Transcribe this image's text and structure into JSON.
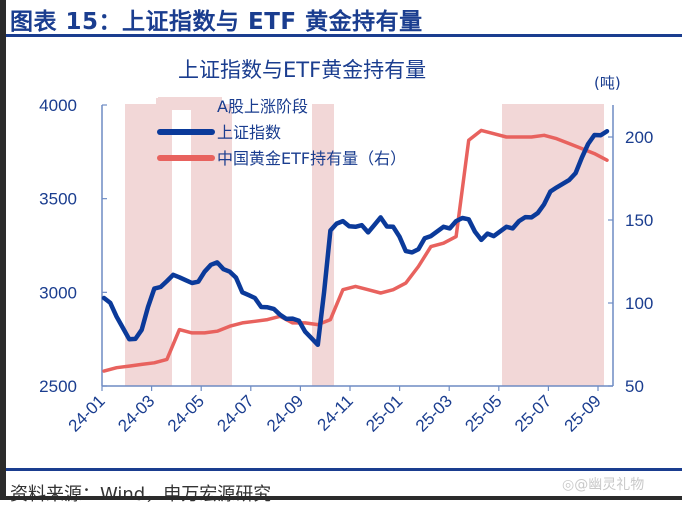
{
  "figure": {
    "title": "图表 15：上证指数与 ETF 黄金持有量",
    "source": "资料来源：Wind，申万宏源研究",
    "watermark": "◎@幽灵礼物"
  },
  "colors": {
    "brand_blue": "#1a3d8f",
    "sse_line": "#0b3a9a",
    "gold_line": "#e8625e",
    "shade": "#f2d7d7",
    "axis": "#6e8cc4"
  },
  "chart_data": {
    "type": "line",
    "title": "上证指数与ETF黄金持有量",
    "xlabel": "",
    "ylabel": "",
    "y2label": "(吨)",
    "x_ticks": [
      "24-01",
      "24-03",
      "24-05",
      "24-07",
      "24-09",
      "24-11",
      "25-01",
      "25-03",
      "25-05",
      "25-07",
      "25-09"
    ],
    "ylim": [
      2500,
      4000
    ],
    "y_ticks": [
      "4000",
      "3500",
      "3000",
      "2500"
    ],
    "y2lim": [
      50,
      200
    ],
    "y2_ticks": [
      "200",
      "150",
      "100",
      "50"
    ],
    "grid": false,
    "legend_position": "upper-left-inside",
    "legend": [
      "A股上涨阶段",
      "上证指数",
      "中国黄金ETF持有量（右）"
    ],
    "shaded_periods": [
      {
        "label": "A股上涨阶段",
        "start": "24-02",
        "end": "24-03"
      },
      {
        "label": "A股上涨阶段",
        "start": "24-04",
        "end": "24-05"
      },
      {
        "label": "A股上涨阶段",
        "start": "24-09",
        "end": "24-10"
      },
      {
        "label": "A股上涨阶段",
        "start": "25-04",
        "end": "25-09"
      }
    ],
    "x": [
      "24-01",
      "24-01m",
      "24-02",
      "24-02m",
      "24-03",
      "24-03m",
      "24-04",
      "24-04m",
      "24-05",
      "24-05m",
      "24-06",
      "24-06m",
      "24-07",
      "24-07m",
      "24-08",
      "24-08m",
      "24-09",
      "24-09m",
      "24-10",
      "24-10m",
      "24-11",
      "24-11m",
      "24-12",
      "24-12m",
      "25-01",
      "25-01m",
      "25-02",
      "25-02m",
      "25-03",
      "25-03m",
      "25-04",
      "25-04m",
      "25-05",
      "25-05m",
      "25-06",
      "25-06m",
      "25-07",
      "25-07m",
      "25-08",
      "25-08m",
      "25-09"
    ],
    "series": [
      {
        "name": "上证指数",
        "axis": "left",
        "values": [
          2970,
          2870,
          2750,
          2800,
          3020,
          3060,
          3080,
          3050,
          3110,
          3160,
          3110,
          3000,
          2970,
          2920,
          2880,
          2860,
          2790,
          2720,
          3330,
          3380,
          3350,
          3320,
          3400,
          3350,
          3220,
          3230,
          3300,
          3350,
          3380,
          3390,
          3280,
          3300,
          3350,
          3380,
          3400,
          3470,
          3560,
          3600,
          3720,
          3840,
          3860
        ]
      },
      {
        "name": "中国黄金ETF持有量（右）",
        "axis": "right",
        "values": [
          59,
          61,
          62,
          63,
          64,
          66,
          84,
          82,
          82,
          83,
          86,
          88,
          89,
          90,
          92,
          88,
          88,
          87,
          90,
          108,
          110,
          108,
          106,
          108,
          112,
          122,
          134,
          136,
          140,
          198,
          204,
          202,
          200,
          200,
          200,
          201,
          199,
          196,
          193,
          190,
          186
        ]
      }
    ]
  }
}
